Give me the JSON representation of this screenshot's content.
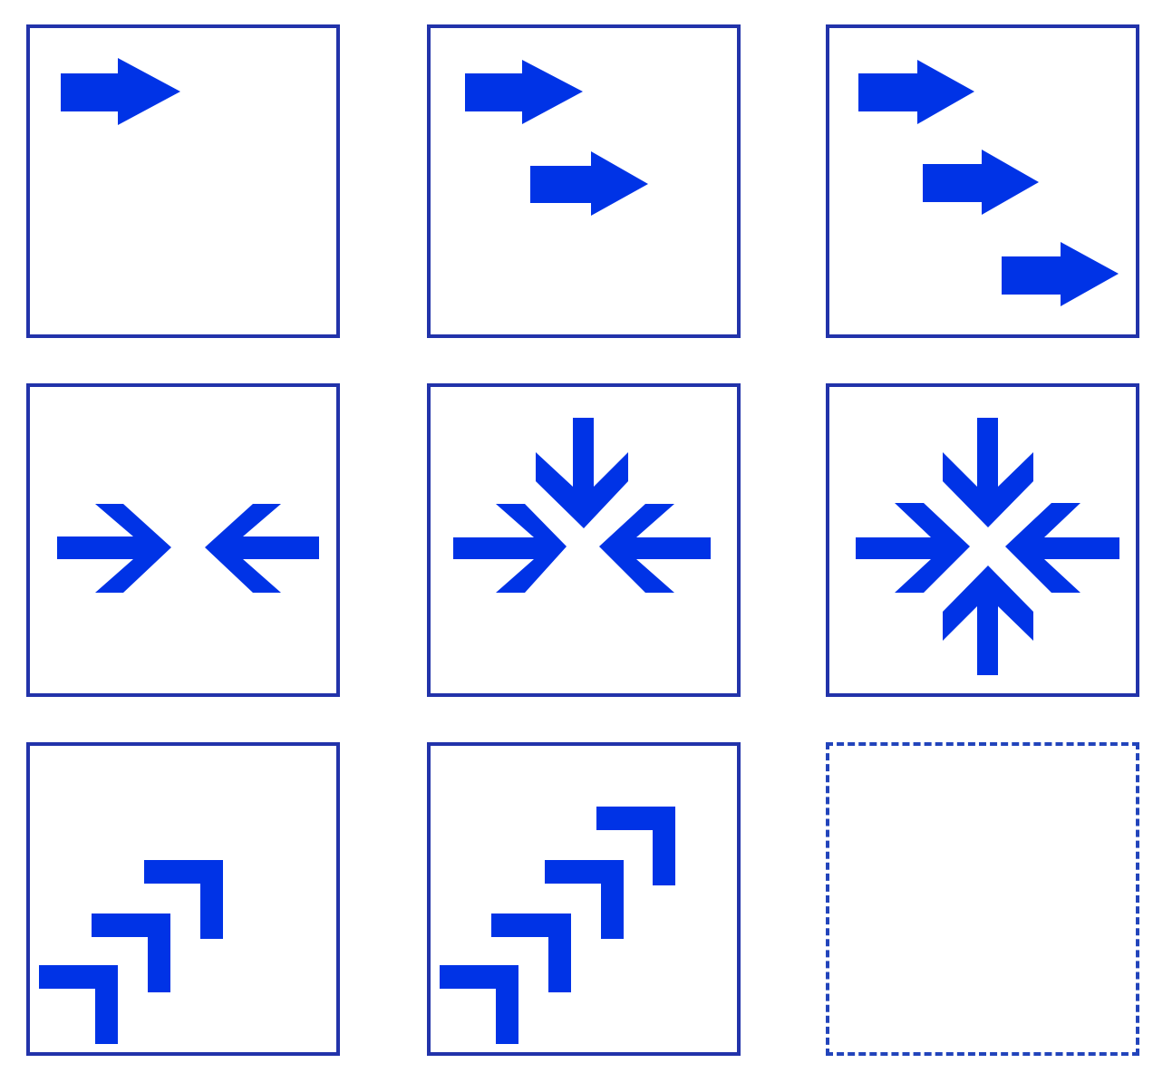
{
  "puzzle": {
    "accent_color": "#0033e6",
    "border_color": "#2233aa",
    "cells": [
      {
        "id": "c1",
        "pattern": "right-arrows",
        "count": 1
      },
      {
        "id": "c2",
        "pattern": "right-arrows",
        "count": 2
      },
      {
        "id": "c3",
        "pattern": "right-arrows",
        "count": 3
      },
      {
        "id": "c4",
        "pattern": "converging-arrows",
        "directions": [
          "left",
          "right"
        ]
      },
      {
        "id": "c5",
        "pattern": "converging-arrows",
        "directions": [
          "left",
          "right",
          "top"
        ]
      },
      {
        "id": "c6",
        "pattern": "converging-arrows",
        "directions": [
          "left",
          "right",
          "top",
          "bottom"
        ]
      },
      {
        "id": "c7",
        "pattern": "stacked-chevrons",
        "count": 3
      },
      {
        "id": "c8",
        "pattern": "stacked-chevrons",
        "count": 4
      },
      {
        "id": "c9",
        "pattern": "missing-answer",
        "count": 0
      }
    ]
  }
}
